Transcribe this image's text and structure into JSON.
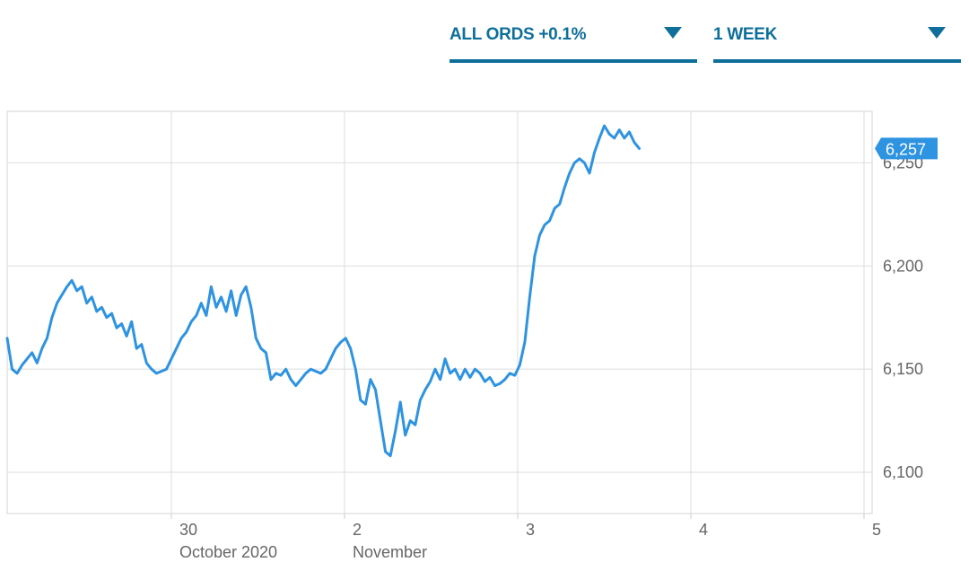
{
  "controls": {
    "index_label": "ALL ORDS +0.1%",
    "range_label": "1 WEEK",
    "accent_color": "#0d6f9a",
    "caret_icon": "caret-down-icon"
  },
  "chart_data": {
    "type": "line",
    "title": "",
    "xlabel": "",
    "ylabel": "",
    "ylim": [
      6080,
      6275
    ],
    "y_ticks": [
      6100,
      6150,
      6200,
      6250
    ],
    "y_tick_labels": [
      "6,100",
      "6,150",
      "6,200",
      "6,250"
    ],
    "x_ticks": [
      {
        "day": "30",
        "sub": "October 2020"
      },
      {
        "day": "2",
        "sub": "November"
      },
      {
        "day": "3",
        "sub": ""
      },
      {
        "day": "4",
        "sub": ""
      },
      {
        "day": "5",
        "sub": ""
      }
    ],
    "grid": true,
    "series_color": "#2e93e0",
    "last_value_label": "6,257",
    "last_value": 6257,
    "series": [
      {
        "values": [
          6165,
          6150,
          6148,
          6152,
          6155,
          6158,
          6153,
          6160,
          6165,
          6175,
          6182,
          6186,
          6190,
          6193,
          6188,
          6190,
          6182,
          6185,
          6178,
          6180,
          6175,
          6177,
          6170,
          6172,
          6166,
          6173,
          6160,
          6162,
          6153,
          6150,
          6148,
          6149,
          6150,
          6155,
          6160,
          6165,
          6168,
          6173,
          6176,
          6182,
          6176,
          6190,
          6180,
          6185,
          6178,
          6188,
          6176,
          6186,
          6190,
          6180,
          6165,
          6160,
          6158,
          6145,
          6148,
          6147,
          6150,
          6145,
          6142,
          6145,
          6148,
          6150,
          6149,
          6148,
          6150,
          6155,
          6160,
          6163,
          6165,
          6160,
          6150,
          6135,
          6133,
          6145,
          6140,
          6125,
          6110,
          6108,
          6120,
          6134,
          6118,
          6125,
          6123,
          6135,
          6140,
          6144,
          6150,
          6145,
          6155,
          6148,
          6150,
          6145,
          6150,
          6146,
          6150,
          6148,
          6144,
          6146,
          6142,
          6143,
          6145,
          6148,
          6147,
          6152,
          6163,
          6185,
          6205,
          6215,
          6220,
          6222,
          6228,
          6230,
          6238,
          6245,
          6250,
          6252,
          6250,
          6245,
          6255,
          6262,
          6268,
          6264,
          6262,
          6266,
          6262,
          6265,
          6260,
          6257
        ]
      }
    ]
  }
}
